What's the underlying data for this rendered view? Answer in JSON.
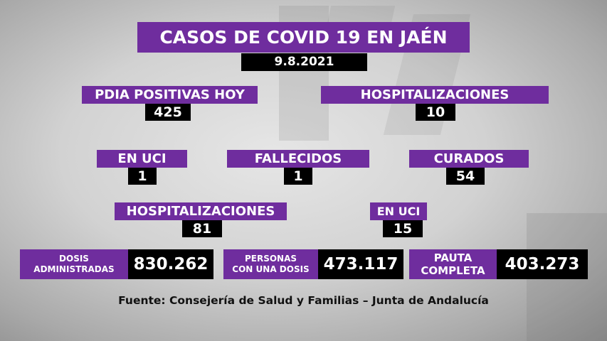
{
  "header": {
    "title": "CASOS DE COVID 19 EN JAÉN",
    "date": "9.8.2021"
  },
  "stats": {
    "pdia_label": "PDIA POSITIVAS HOY",
    "pdia_value": "425",
    "hosp_label": "HOSPITALIZACIONES",
    "hosp_value": "10",
    "uci_label": "EN UCI",
    "uci_value": "1",
    "fallecidos_label": "FALLECIDOS",
    "fallecidos_value": "1",
    "curados_label": "CURADOS",
    "curados_value": "54",
    "hosp2_label": "HOSPITALIZACIONES",
    "hosp2_value": "81",
    "uci2_label": "EN UCI",
    "uci2_value": "15"
  },
  "vaccines": {
    "dosis_line1": "DOSIS",
    "dosis_line2": "ADMINISTRADAS",
    "dosis_value": "830.262",
    "una_line1": "PERSONAS",
    "una_line2": "CON UNA DOSIS",
    "una_value": "473.117",
    "pauta_line1": "PAUTA",
    "pauta_line2": "COMPLETA",
    "pauta_value": "403.273"
  },
  "source": "Fuente: Consejería de Salud y Familias – Junta de Andalucía",
  "colors": {
    "purple": "#6f2d9e",
    "black": "#000000"
  }
}
